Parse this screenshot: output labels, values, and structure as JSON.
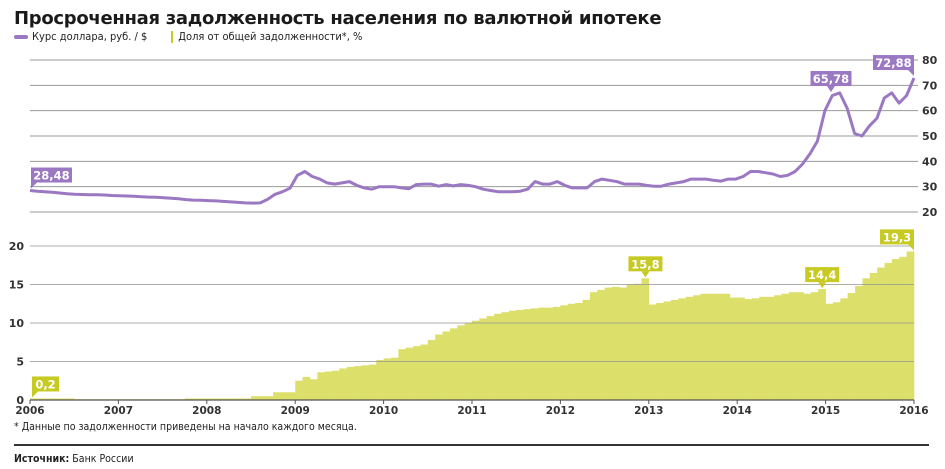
{
  "title": "Просроченная задолженность населения по валютной ипотеке",
  "legend": {
    "usd": "Курс доллара, руб. / $",
    "share": "Доля от общей задолженности*, %"
  },
  "colors": {
    "usd": "#9b78c2",
    "share": "#dcdf6a",
    "share_label": "#c6ca22",
    "grid": "#9a9a9a"
  },
  "footnote": "* Данные по задолженности приведены на начало каждого месяца.",
  "source_label": "Источник:",
  "source_value": "Банк России",
  "chart_data": [
    {
      "type": "line",
      "name": "Курс доллара, руб. / $",
      "x_start": 2006,
      "x_end": 2016,
      "ylim": [
        20,
        80
      ],
      "yticks": [
        "20",
        "30",
        "40",
        "50",
        "60",
        "70",
        "80"
      ],
      "monthly_values": [
        28.5,
        28.2,
        28.0,
        27.8,
        27.5,
        27.2,
        27.0,
        26.9,
        26.8,
        26.8,
        26.7,
        26.5,
        26.4,
        26.3,
        26.2,
        26.0,
        25.9,
        25.8,
        25.6,
        25.4,
        25.2,
        24.9,
        24.7,
        24.6,
        24.5,
        24.4,
        24.2,
        24.0,
        23.8,
        23.6,
        23.5,
        23.6,
        25.0,
        27.0,
        28.0,
        29.4,
        34.5,
        36.0,
        34.0,
        33.0,
        31.5,
        31.0,
        31.5,
        32.0,
        30.5,
        29.5,
        29.0,
        30.0,
        30.0,
        30.0,
        29.5,
        29.2,
        30.8,
        31.0,
        31.0,
        30.2,
        30.8,
        30.3,
        30.8,
        30.5,
        30.0,
        29.0,
        28.5,
        28.0,
        28.0,
        28.0,
        28.2,
        29.0,
        32.0,
        31.0,
        31.0,
        32.0,
        30.5,
        29.5,
        29.5,
        29.5,
        32.0,
        33.0,
        32.5,
        32.0,
        31.0,
        31.0,
        31.0,
        30.5,
        30.2,
        30.2,
        31.0,
        31.5,
        32.0,
        33.0,
        33.0,
        33.0,
        32.5,
        32.2,
        33.0,
        33.0,
        34.0,
        36.0,
        36.0,
        35.5,
        35.0,
        34.0,
        34.5,
        36.0,
        39.0,
        43.0,
        48.0,
        60.0,
        66.0,
        67.0,
        61.0,
        51.0,
        50.0,
        54.0,
        57.0,
        65.0,
        67.0,
        63.0,
        66.0,
        72.88
      ],
      "annotations": [
        {
          "label": "28,48",
          "value": 28.48
        },
        {
          "label": "65,78",
          "value": 65.78
        },
        {
          "label": "72,88",
          "value": 72.88
        }
      ]
    },
    {
      "type": "bar",
      "name": "Доля от общей задолженности*, %",
      "x_start": 2006,
      "x_end": 2016,
      "ylim": [
        0,
        20
      ],
      "yticks": [
        "0",
        "5",
        "10",
        "15",
        "20"
      ],
      "xticks": [
        "2006",
        "2007",
        "2008",
        "2009",
        "2010",
        "2011",
        "2012",
        "2013",
        "2014",
        "2015",
        "2016"
      ],
      "monthly_values": [
        0.2,
        0.2,
        0.2,
        0.2,
        0.2,
        0.2,
        0.1,
        0.1,
        0.1,
        0.1,
        0.1,
        0.1,
        0.1,
        0.1,
        0.1,
        0.1,
        0.1,
        0.1,
        0.1,
        0.1,
        0.1,
        0.2,
        0.2,
        0.2,
        0.2,
        0.2,
        0.2,
        0.2,
        0.2,
        0.2,
        0.5,
        0.5,
        0.5,
        1.0,
        1.0,
        1.0,
        2.5,
        3.0,
        2.7,
        3.6,
        3.7,
        3.8,
        4.1,
        4.3,
        4.4,
        4.5,
        4.6,
        5.2,
        5.4,
        5.5,
        6.6,
        6.8,
        7.0,
        7.2,
        7.8,
        8.5,
        8.9,
        9.3,
        9.7,
        10.0,
        10.3,
        10.6,
        10.9,
        11.2,
        11.4,
        11.6,
        11.7,
        11.8,
        11.9,
        12.0,
        12.0,
        12.1,
        12.3,
        12.5,
        12.6,
        13.0,
        14.0,
        14.3,
        14.6,
        14.7,
        14.6,
        15.0,
        15.1,
        15.8,
        12.4,
        12.6,
        12.8,
        13.0,
        13.2,
        13.4,
        13.6,
        13.8,
        13.8,
        13.8,
        13.8,
        13.3,
        13.3,
        13.1,
        13.2,
        13.4,
        13.4,
        13.6,
        13.8,
        14.0,
        14.0,
        13.8,
        14.0,
        14.4,
        12.5,
        12.7,
        13.2,
        13.9,
        14.8,
        15.8,
        16.5,
        17.2,
        17.8,
        18.3,
        18.6,
        19.3
      ],
      "annotations": [
        {
          "label": "0,2",
          "value": 0.2
        },
        {
          "label": "15,8",
          "value": 15.8
        },
        {
          "label": "14,4",
          "value": 14.4
        },
        {
          "label": "19,3",
          "value": 19.3
        }
      ]
    }
  ]
}
